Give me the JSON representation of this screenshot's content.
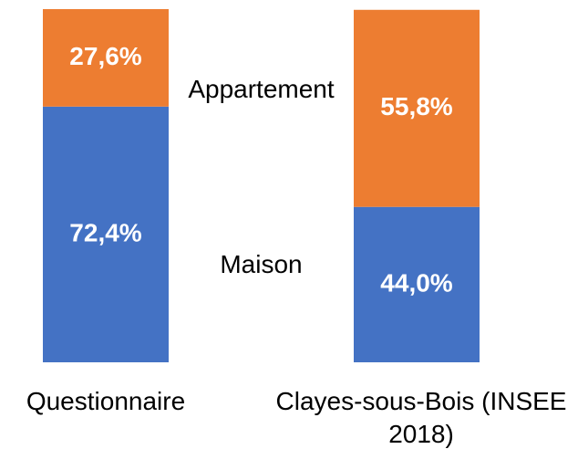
{
  "chart_data": {
    "type": "stacked_bar",
    "categories": [
      "Questionnaire",
      "Clayes-sous-Bois (INSEE 2018)"
    ],
    "series": [
      {
        "name": "Maison",
        "color": "#4472c4",
        "values": [
          72.4,
          44.0
        ],
        "value_labels": [
          "72,4%",
          "44,0%"
        ]
      },
      {
        "name": "Appartement",
        "color": "#ed7d31",
        "values": [
          27.6,
          55.8
        ],
        "value_labels": [
          "27,6%",
          "55,8%"
        ]
      }
    ],
    "ylim": [
      0,
      100
    ]
  }
}
